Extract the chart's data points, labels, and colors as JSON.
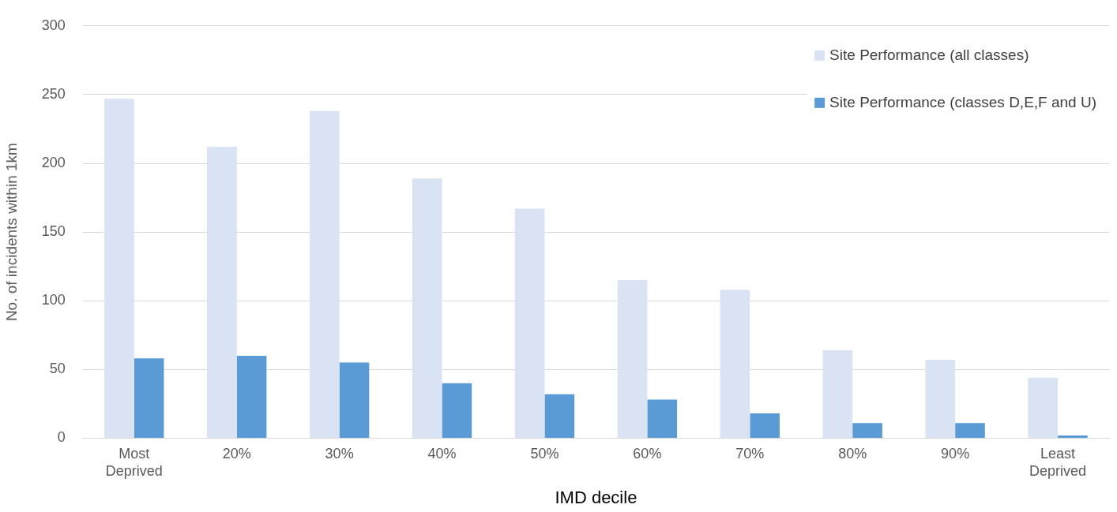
{
  "chart_data": {
    "type": "bar",
    "xlabel": "IMD decile",
    "ylabel": "No. of incidents within 1km",
    "categories": [
      "Most\nDeprived",
      "20%",
      "30%",
      "40%",
      "50%",
      "60%",
      "70%",
      "80%",
      "90%",
      "Least\nDeprived"
    ],
    "series": [
      {
        "name": "Site Performance (all classes)",
        "color": "#dae3f3",
        "values": [
          247,
          212,
          238,
          189,
          167,
          115,
          108,
          64,
          57,
          44
        ]
      },
      {
        "name": "Site Performance (classes D,E,F and U)",
        "color": "#5b9bd5",
        "values": [
          58,
          60,
          55,
          40,
          32,
          28,
          18,
          11,
          11,
          2
        ]
      }
    ],
    "ylim": [
      0,
      300
    ],
    "yticks": [
      0,
      50,
      100,
      150,
      200,
      250,
      300
    ],
    "grid": "y",
    "legend": "top right"
  }
}
